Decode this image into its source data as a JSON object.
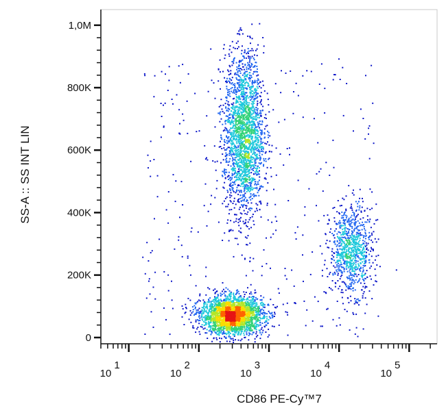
{
  "chart_data": {
    "type": "scatter",
    "style": "flow-cytometry-density-dot-plot",
    "xlabel": "CD86 PE-Cy™7",
    "ylabel": "SS-A :: SS INT LIN",
    "xscale": "log",
    "yscale": "linear",
    "xlim": [
      4,
      250000
    ],
    "ylim": [
      -20000,
      1050000
    ],
    "x_tick_labels": [
      {
        "base": "10",
        "exp": "1",
        "value": 10
      },
      {
        "base": "10",
        "exp": "2",
        "value": 100
      },
      {
        "base": "10",
        "exp": "3",
        "value": 1000
      },
      {
        "base": "10",
        "exp": "4",
        "value": 10000
      },
      {
        "base": "10",
        "exp": "5",
        "value": 100000
      }
    ],
    "y_tick_labels": [
      {
        "label": "0",
        "value": 0
      },
      {
        "label": "200K",
        "value": 200000
      },
      {
        "label": "400K",
        "value": 400000
      },
      {
        "label": "600K",
        "value": 600000
      },
      {
        "label": "800K",
        "value": 800000
      },
      {
        "label": "1,0M",
        "value": 1000000
      }
    ],
    "density_colormap": [
      "#0a14c8",
      "#1e64f0",
      "#1ec8dc",
      "#32d278",
      "#b4e628",
      "#fadc00",
      "#ff6400",
      "#e61414"
    ],
    "populations": [
      {
        "x_center": 300,
        "x_log_sd": 0.22,
        "y_center": 70000,
        "y_sd": 30000,
        "events": 2600
      },
      {
        "x_center": 440,
        "x_log_sd": 0.14,
        "y_center": 650000,
        "y_sd": 130000,
        "events": 2200
      },
      {
        "x_center": 15000,
        "x_log_sd": 0.15,
        "y_center": 280000,
        "y_sd": 70000,
        "events": 900
      }
    ],
    "grid": false,
    "legend": "none"
  }
}
